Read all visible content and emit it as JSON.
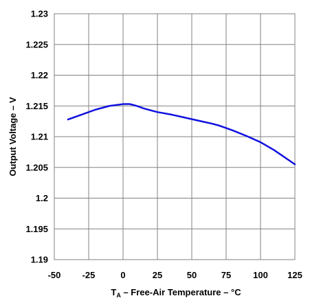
{
  "chart_data": {
    "type": "line",
    "xlabel_main": "T",
    "xlabel_subscript": "A",
    "xlabel_rest": " – Free-Air Temperature – °C",
    "ylabel": "Output Voltage – V",
    "xlim": [
      -50,
      125
    ],
    "ylim": [
      1.19,
      1.23
    ],
    "x_ticks": [
      -50,
      -25,
      0,
      25,
      50,
      75,
      100,
      125
    ],
    "x_tick_labels": [
      "-50",
      "-25",
      "0",
      "25",
      "50",
      "75",
      "100",
      "125"
    ],
    "y_ticks": [
      1.19,
      1.195,
      1.2,
      1.205,
      1.21,
      1.215,
      1.22,
      1.225,
      1.23
    ],
    "y_tick_labels": [
      "1.19",
      "1.195",
      "1.2",
      "1.205",
      "1.21",
      "1.215",
      "1.22",
      "1.225",
      "1.23"
    ],
    "grid": true,
    "line_color": "#1010e0",
    "series": [
      {
        "x": [
          -40,
          -30,
          -20,
          -10,
          0,
          5,
          10,
          15,
          20,
          25,
          35,
          45,
          55,
          65,
          70,
          75,
          80,
          90,
          100,
          110,
          125
        ],
        "y": [
          1.2128,
          1.2136,
          1.2144,
          1.215,
          1.2153,
          1.2153,
          1.215,
          1.2146,
          1.2143,
          1.214,
          1.2136,
          1.2131,
          1.2126,
          1.2121,
          1.2118,
          1.2114,
          1.211,
          1.2101,
          1.2091,
          1.2078,
          1.2055
        ]
      }
    ]
  }
}
